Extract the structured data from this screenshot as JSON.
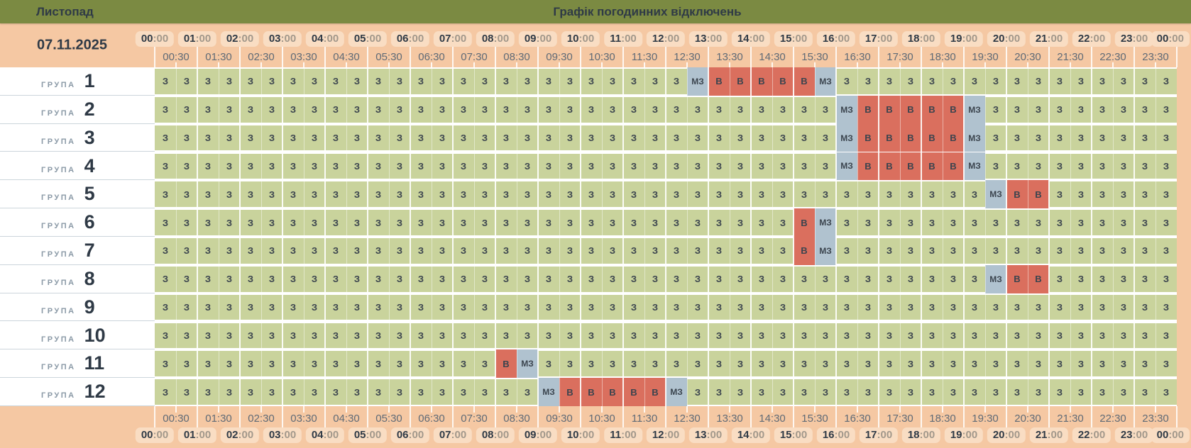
{
  "header": {
    "month": "Листопад",
    "title": "Графік погодинних відключень",
    "date": "07.11.2025"
  },
  "colors": {
    "olive": "#7b8a42",
    "peach": "#f5c8a3",
    "pill": "#f9ddc3",
    "on": "#c9d39c",
    "off": "#da6f5e",
    "possible": "#b0c2cf",
    "darkText": "#2f3a46",
    "cellText": "#3b444e",
    "axisText": "#5f6a76",
    "muted": "#a2988b",
    "groupWord": "#8a99a6"
  },
  "chart_data": {
    "type": "heatmap",
    "title": "Графік погодинних відключень",
    "x_range": [
      "00:00",
      "24:00"
    ],
    "slot_minutes": 30,
    "hour_labels": [
      "00:00",
      "01:00",
      "02:00",
      "03:00",
      "04:00",
      "05:00",
      "06:00",
      "07:00",
      "08:00",
      "09:00",
      "10:00",
      "11:00",
      "12:00",
      "13:00",
      "14:00",
      "15:00",
      "16:00",
      "17:00",
      "18:00",
      "19:00",
      "20:00",
      "21:00",
      "22:00",
      "23:00",
      "00:00"
    ],
    "half_hour_labels": [
      "00:30",
      "01:30",
      "02:30",
      "03:30",
      "04:30",
      "05:30",
      "06:30",
      "07:30",
      "08:30",
      "09:30",
      "10:30",
      "11:30",
      "12:30",
      "13:30",
      "14:30",
      "15:30",
      "16:30",
      "17:30",
      "18:30",
      "19:30",
      "20:30",
      "21:30",
      "22:30",
      "23:30"
    ],
    "legend": {
      "Z": "З",
      "V": "В",
      "M": "МЗ"
    },
    "row_label_word": "ГРУПА",
    "rows": [
      {
        "number": "1",
        "pattern": "ZZZZZZZZZZZZZZZZZZZZZZZZZMVVVVVMZZZZZZZZZZZZZZZZ"
      },
      {
        "number": "2",
        "pattern": "ZZZZZZZZZZZZZZZZZZZZZZZZZZZZZZZZMVVVVVMZZZZZZZZZ"
      },
      {
        "number": "3",
        "pattern": "ZZZZZZZZZZZZZZZZZZZZZZZZZZZZZZZZMVVVVVMZZZZZZZZZ"
      },
      {
        "number": "4",
        "pattern": "ZZZZZZZZZZZZZZZZZZZZZZZZZZZZZZZZMVVVVVMZZZZZZZZZ"
      },
      {
        "number": "5",
        "pattern": "ZZZZZZZZZZZZZZZZZZZZZZZZZZZZZZZZZZZZZZZMVVZZZZZZ"
      },
      {
        "number": "6",
        "pattern": "ZZZZZZZZZZZZZZZZZZZZZZZZZZZZZZVMZZZZZZZZZZZZZZZZ"
      },
      {
        "number": "7",
        "pattern": "ZZZZZZZZZZZZZZZZZZZZZZZZZZZZZZVMZZZZZZZZZZZZZZZZ"
      },
      {
        "number": "8",
        "pattern": "ZZZZZZZZZZZZZZZZZZZZZZZZZZZZZZZZZZZZZZZMVVZZZZZZ"
      },
      {
        "number": "9",
        "pattern": "ZZZZZZZZZZZZZZZZZZZZZZZZZZZZZZZZZZZZZZZZZZZZZZZZ"
      },
      {
        "number": "10",
        "pattern": "ZZZZZZZZZZZZZZZZZZZZZZZZZZZZZZZZZZZZZZZZZZZZZZZZ"
      },
      {
        "number": "11",
        "pattern": "ZZZZZZZZZZZZZZZZVMZZZZZZZZZZZZZZZZZZZZZZZZZZZZZZ"
      },
      {
        "number": "12",
        "pattern": "ZZZZZZZZZZZZZZZZZZMVVVVVMZZZZZZZZZZZZZZZZZZZZZZZ"
      }
    ]
  }
}
